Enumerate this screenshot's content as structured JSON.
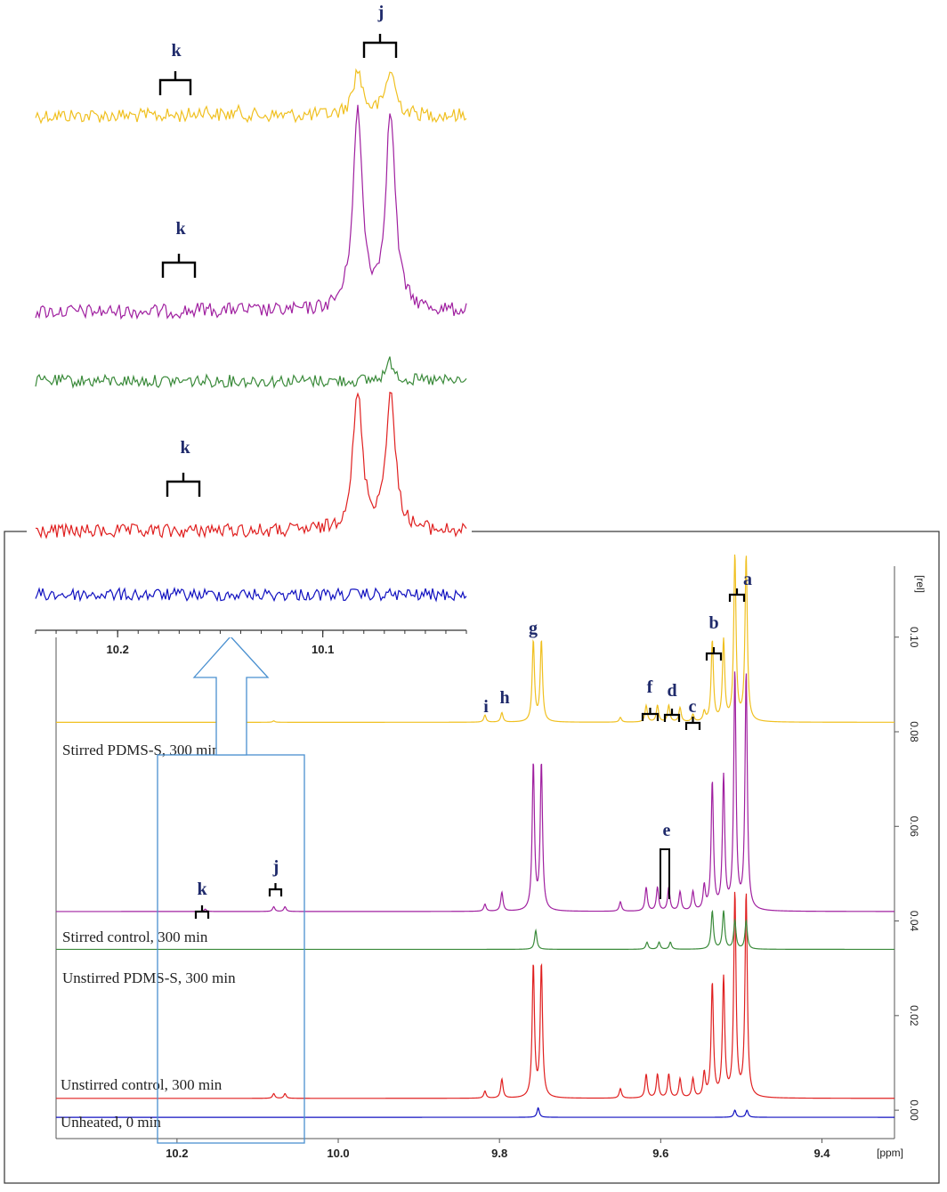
{
  "chart_data": {
    "type": "line",
    "main": {
      "xlabel": "[ppm]",
      "ylabel": "[rel]",
      "xlim": [
        10.35,
        9.31
      ],
      "ylim": [
        -0.006,
        0.115
      ],
      "x_ticks": [
        "10.2",
        "10.0",
        "9.8",
        "9.6",
        "9.4"
      ],
      "y_ticks": [
        "0.00",
        "0.02",
        "0.04",
        "0.06",
        "0.08",
        "0.10"
      ],
      "series": [
        {
          "name": "Unheated, 0 min",
          "color": "#1010c0",
          "baseline": -0.0015,
          "peaks": [
            [
              9.752,
              0.002
            ],
            [
              9.508,
              0.0015
            ],
            [
              9.493,
              0.0015
            ]
          ]
        },
        {
          "name": "Unstirred control, 300 min",
          "color": "#e02020",
          "baseline": 0.0025,
          "peaks": [
            [
              10.08,
              0.001
            ],
            [
              10.066,
              0.001
            ],
            [
              9.818,
              0.0015
            ],
            [
              9.797,
              0.004
            ],
            [
              9.758,
              0.028
            ],
            [
              9.748,
              0.028
            ],
            [
              9.65,
              0.002
            ],
            [
              9.618,
              0.005
            ],
            [
              9.604,
              0.005
            ],
            [
              9.59,
              0.005
            ],
            [
              9.576,
              0.004
            ],
            [
              9.56,
              0.004
            ],
            [
              9.546,
              0.005
            ],
            [
              9.536,
              0.024
            ],
            [
              9.522,
              0.025
            ],
            [
              9.508,
              0.043
            ],
            [
              9.494,
              0.043
            ]
          ]
        },
        {
          "name": "Unstirred PDMS-S, 300 min",
          "color": "#3a8a3a",
          "baseline": 0.034,
          "peaks": [
            [
              9.755,
              0.004
            ],
            [
              9.617,
              0.0015
            ],
            [
              9.602,
              0.0015
            ],
            [
              9.588,
              0.0015
            ],
            [
              9.536,
              0.008
            ],
            [
              9.522,
              0.008
            ],
            [
              9.508,
              0.006
            ],
            [
              9.494,
              0.006
            ]
          ]
        },
        {
          "name": "Stirred control, 300 min",
          "color": "#a020a0",
          "baseline": 0.042,
          "peaks": [
            [
              10.165,
              0.0005
            ],
            [
              10.08,
              0.001
            ],
            [
              10.066,
              0.001
            ],
            [
              9.818,
              0.0015
            ],
            [
              9.797,
              0.004
            ],
            [
              9.758,
              0.031
            ],
            [
              9.748,
              0.031
            ],
            [
              9.65,
              0.002
            ],
            [
              9.618,
              0.005
            ],
            [
              9.604,
              0.005
            ],
            [
              9.59,
              0.005
            ],
            [
              9.576,
              0.004
            ],
            [
              9.56,
              0.004
            ],
            [
              9.546,
              0.005
            ],
            [
              9.536,
              0.027
            ],
            [
              9.522,
              0.028
            ],
            [
              9.508,
              0.05
            ],
            [
              9.494,
              0.05
            ]
          ]
        },
        {
          "name": "Stirred PDMS-S, 300 min",
          "color": "#f0c020",
          "baseline": 0.082,
          "peaks": [
            [
              10.08,
              0.0003
            ],
            [
              9.818,
              0.0015
            ],
            [
              9.797,
              0.002
            ],
            [
              9.758,
              0.017
            ],
            [
              9.748,
              0.017
            ],
            [
              9.65,
              0.001
            ],
            [
              9.618,
              0.0035
            ],
            [
              9.604,
              0.0035
            ],
            [
              9.59,
              0.0035
            ],
            [
              9.576,
              0.003
            ],
            [
              9.56,
              0.0015
            ],
            [
              9.546,
              0.002
            ],
            [
              9.536,
              0.017
            ],
            [
              9.522,
              0.017
            ],
            [
              9.508,
              0.035
            ],
            [
              9.494,
              0.035
            ]
          ]
        }
      ],
      "annotations": [
        {
          "label": "i",
          "x": 9.818,
          "series": "Stirred PDMS-S, 300 min"
        },
        {
          "label": "h",
          "x": 9.797,
          "series": "Stirred PDMS-S, 300 min"
        },
        {
          "label": "g",
          "x": 9.753,
          "series": "Stirred PDMS-S, 300 min"
        },
        {
          "label": "f",
          "x": 9.611,
          "series": "Stirred PDMS-S, 300 min"
        },
        {
          "label": "d",
          "x": 9.583,
          "series": "Stirred PDMS-S, 300 min"
        },
        {
          "label": "c",
          "x": 9.553,
          "series": "Stirred PDMS-S, 300 min"
        },
        {
          "label": "b",
          "x": 9.529,
          "series": "Stirred PDMS-S, 300 min"
        },
        {
          "label": "a",
          "x": 9.501,
          "series": "Stirred PDMS-S, 300 min"
        },
        {
          "label": "e",
          "x": 9.59,
          "series": "Stirred control, 300 min"
        },
        {
          "label": "k",
          "x": 10.165,
          "series": "Stirred control, 300 min"
        },
        {
          "label": "j",
          "x": 10.073,
          "series": "Stirred control, 300 min"
        }
      ]
    },
    "inset": {
      "xlim": [
        10.24,
        10.03
      ],
      "x_ticks": [
        "10.2",
        "10.1"
      ],
      "series_order_top_to_bottom": [
        "Stirred PDMS-S, 300 min",
        "Stirred control, 300 min",
        "Unstirred PDMS-S, 300 min",
        "Unstirred control, 300 min",
        "Unheated, 0 min"
      ],
      "peaks": [
        {
          "series": "Stirred PDMS-S, 300 min",
          "k": [
            [
              10.158,
              0.25
            ],
            [
              10.142,
              0.15
            ]
          ],
          "j": [
            [
              10.083,
              1.0
            ],
            [
              10.067,
              1.0
            ]
          ]
        },
        {
          "series": "Stirred control, 300 min",
          "k": [
            [
              10.158,
              0.12
            ],
            [
              10.142,
              0.12
            ]
          ],
          "j": [
            [
              10.083,
              1.0
            ],
            [
              10.067,
              1.0
            ]
          ]
        },
        {
          "series": "Unstirred PDMS-S, 300 min",
          "k": [],
          "j": [
            [
              10.067,
              0.35
            ]
          ]
        },
        {
          "series": "Unstirred control, 300 min",
          "k": [
            [
              10.156,
              0.12
            ],
            [
              10.142,
              0.1
            ]
          ],
          "j": [
            [
              10.083,
              1.0
            ],
            [
              10.067,
              1.0
            ]
          ]
        },
        {
          "series": "Unheated, 0 min",
          "k": [],
          "j": []
        }
      ],
      "annotations": [
        {
          "label": "k",
          "series": "Stirred PDMS-S, 300 min"
        },
        {
          "label": "j",
          "series": "Stirred PDMS-S, 300 min"
        },
        {
          "label": "k",
          "series": "Stirred control, 300 min"
        },
        {
          "label": "k",
          "series": "Unstirred control, 300 min"
        }
      ]
    },
    "grid": false,
    "legend": "none"
  }
}
